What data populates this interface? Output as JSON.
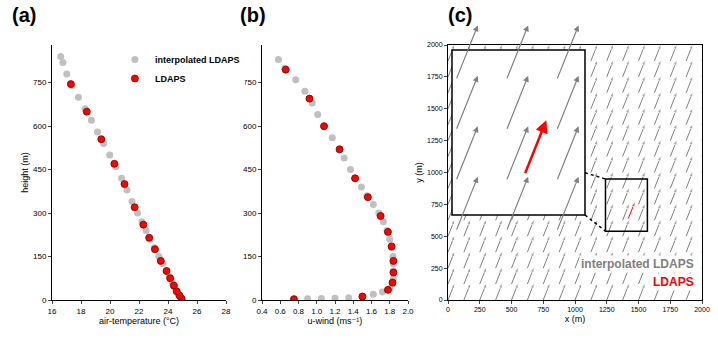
{
  "chart_data": [
    {
      "type": "scatter",
      "title": "(a)",
      "xlabel": "air-temperature (°C)",
      "ylabel": "height (m)",
      "xlim": [
        16,
        28
      ],
      "xticks": [
        16,
        18,
        20,
        22,
        24,
        26,
        28
      ],
      "ylim": [
        0,
        880
      ],
      "yticks": [
        0,
        150,
        300,
        450,
        600,
        750
      ],
      "series": [
        {
          "name": "interpolated LDAPS",
          "color": "#c0c0c0",
          "x": [
            25.0,
            24.85,
            24.72,
            24.6,
            24.45,
            24.3,
            24.1,
            23.9,
            23.63,
            23.37,
            23.05,
            22.76,
            22.49,
            22.2,
            21.9,
            21.52,
            21.17,
            20.8,
            20.4,
            19.98,
            19.56,
            19.14,
            18.72,
            18.29,
            17.82,
            17.36,
            17.02,
            16.75,
            16.6
          ],
          "y": [
            0,
            10,
            20,
            30,
            45,
            60,
            80,
            100,
            125,
            150,
            180,
            210,
            240,
            270,
            300,
            340,
            380,
            420,
            460,
            500,
            540,
            580,
            620,
            660,
            700,
            740,
            780,
            820,
            840
          ]
        },
        {
          "name": "LDAPS",
          "color": "#ff0000",
          "x": [
            24.93,
            24.8,
            24.6,
            24.4,
            24.15,
            23.9,
            23.5,
            23.1,
            22.7,
            22.3,
            21.7,
            21.0,
            20.3,
            19.4,
            18.4,
            17.3
          ],
          "y": [
            5,
            15,
            30,
            50,
            75,
            100,
            135,
            175,
            215,
            260,
            320,
            400,
            470,
            555,
            650,
            745
          ]
        }
      ]
    },
    {
      "type": "scatter",
      "title": "(b)",
      "xlabel": "u-wind (ms⁻¹)",
      "xlim": [
        0.4,
        2.0
      ],
      "xticks": [
        0.4,
        0.6,
        0.8,
        {
          "value": 1,
          "label": "1.0"
        },
        1.2,
        1.4,
        1.6,
        1.8,
        {
          "value": 2,
          "label": "2.0"
        }
      ],
      "ylim": [
        0,
        880
      ],
      "yticks": [
        0,
        150,
        300,
        450,
        600,
        750
      ],
      "series": [
        {
          "name": "interpolated LDAPS",
          "color": "#c0c0c0",
          "x": [
            0.75,
            0.9,
            1.05,
            1.2,
            1.35,
            1.5,
            1.62,
            1.72,
            1.8,
            1.83,
            1.84,
            1.84,
            1.84,
            1.835,
            1.82,
            1.8,
            1.77,
            1.73,
            1.68,
            1.62,
            1.55,
            1.49,
            1.42,
            1.37,
            1.3,
            1.25,
            1.17,
            1.08,
            1.01,
            0.95,
            0.87,
            0.77,
            0.65,
            0.58
          ],
          "y": [
            3,
            4,
            5,
            6,
            8,
            12,
            20,
            28,
            40,
            55,
            75,
            100,
            125,
            150,
            180,
            210,
            240,
            270,
            300,
            330,
            360,
            390,
            420,
            450,
            490,
            520,
            560,
            600,
            640,
            680,
            720,
            760,
            800,
            830
          ]
        },
        {
          "name": "LDAPS",
          "color": "#ff0000",
          "x": [
            0.75,
            1.5,
            1.78,
            1.83,
            1.84,
            1.84,
            1.82,
            1.78,
            1.7,
            1.56,
            1.42,
            1.25,
            1.08,
            0.92,
            0.66
          ],
          "y": [
            3,
            12,
            35,
            60,
            95,
            135,
            185,
            235,
            290,
            355,
            420,
            520,
            600,
            695,
            795
          ]
        }
      ]
    },
    {
      "type": "vector",
      "title": "(c)",
      "xlabel": "x (m)",
      "ylabel": "y (m)",
      "xlim": [
        0,
        2000
      ],
      "xticks": [
        0,
        250,
        500,
        750,
        1000,
        1250,
        1500,
        1750,
        2000
      ],
      "ylim": [
        0,
        2000
      ],
      "yticks": [
        0,
        250,
        500,
        750,
        1000,
        1250,
        1500,
        1750,
        2000
      ],
      "series": [
        {
          "name": "interpolated LDAPS",
          "color": "#808080",
          "x": [
            0,
            125,
            250,
            375,
            500,
            625,
            750,
            875,
            1000,
            1125,
            1250,
            1375,
            1500,
            1625,
            1750,
            1875,
            2000
          ],
          "y": [
            0,
            125,
            250,
            375,
            500,
            625,
            750,
            875,
            1000,
            1125,
            1250,
            1375,
            1500,
            1625,
            1750,
            1875,
            2000
          ],
          "u": 1.8,
          "v": 4.5
        },
        {
          "name": "LDAPS",
          "color": "#ff0000",
          "x": [
            1420
          ],
          "y": [
            640
          ],
          "u": 1.8,
          "v": 4.5
        }
      ]
    }
  ]
}
